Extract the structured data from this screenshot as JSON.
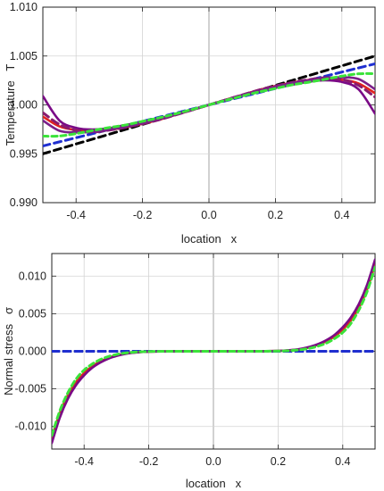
{
  "chart_data": [
    {
      "type": "line",
      "xlabel": "location   x",
      "ylabel": "Temperature   T",
      "xlim": [
        -0.5,
        0.5
      ],
      "ylim": [
        0.99,
        1.01
      ],
      "xticks": [
        -0.4,
        -0.2,
        0.0,
        0.2,
        0.4
      ],
      "xtick_labels": [
        "-0.4",
        "-0.2",
        "0.0",
        "0.2",
        "0.4"
      ],
      "yticks": [
        0.99,
        0.995,
        1.0,
        1.005,
        1.01
      ],
      "ytick_labels": [
        "0.990",
        "0.995",
        "1.000",
        "1.005",
        "1.010"
      ],
      "grid": true,
      "x": [
        -0.5,
        -0.45,
        -0.4,
        -0.35,
        -0.3,
        -0.25,
        -0.2,
        -0.15,
        -0.1,
        -0.05,
        0.0,
        0.05,
        0.1,
        0.15,
        0.2,
        0.25,
        0.3,
        0.35,
        0.4,
        0.45,
        0.5
      ],
      "series": [
        {
          "color": "#000000",
          "style": "dashed",
          "values": [
            0.995,
            0.9955,
            0.996,
            0.9965,
            0.997,
            0.9975,
            0.998,
            0.9985,
            0.999,
            0.9995,
            1.0,
            1.0005,
            1.001,
            1.0015,
            1.002,
            1.0025,
            1.003,
            1.0035,
            1.004,
            1.0045,
            1.005
          ]
        },
        {
          "color": "#1f2fd0",
          "style": "dashed",
          "values": [
            0.9958,
            0.99622,
            0.99664,
            0.99706,
            0.99748,
            0.9979,
            0.99832,
            0.99874,
            0.99916,
            0.99958,
            1.0,
            1.00042,
            1.00084,
            1.00126,
            1.00168,
            1.0021,
            1.00252,
            1.00294,
            1.00336,
            1.00378,
            1.0042
          ]
        },
        {
          "color": "#e0221e",
          "style": "solid",
          "values": [
            0.9988,
            0.9978,
            0.99742,
            0.99728,
            0.99745,
            0.99772,
            0.99807,
            0.99848,
            0.99898,
            0.99948,
            1.0,
            1.00052,
            1.00102,
            1.00152,
            1.00193,
            1.00228,
            1.00255,
            1.00272,
            1.00258,
            1.0022,
            1.0012
          ]
        },
        {
          "color": "#7a0a86",
          "style": "solid",
          "values": [
            1.0009,
            0.9984,
            0.99765,
            0.99748,
            0.99763,
            0.99795,
            0.99825,
            0.99862,
            0.99905,
            0.99952,
            1.0,
            1.00048,
            1.00095,
            1.00138,
            1.00175,
            1.00205,
            1.00237,
            1.00252,
            1.00235,
            1.0016,
            0.9991
          ]
        },
        {
          "color": "#8a1b6e",
          "style": "dashed",
          "values": [
            0.9992,
            0.998,
            0.99738,
            0.99722,
            0.99742,
            0.9977,
            0.99806,
            0.99848,
            0.99898,
            0.99949,
            1.0,
            1.00051,
            1.00102,
            1.00152,
            1.00194,
            1.0023,
            1.00258,
            1.00278,
            1.00262,
            1.002,
            1.0008
          ]
        },
        {
          "color": "#7b1f8a",
          "style": "solid",
          "values": [
            0.9984,
            0.99735,
            0.99718,
            0.99725,
            0.99748,
            0.99778,
            0.99815,
            0.99855,
            0.999,
            0.9995,
            1.0,
            1.0005,
            1.001,
            1.00145,
            1.00185,
            1.00222,
            1.00252,
            1.00275,
            1.00282,
            1.00265,
            1.0016
          ]
        },
        {
          "color": "#3be33a",
          "style": "dashed",
          "values": [
            0.9968,
            0.99682,
            0.99706,
            0.99738,
            0.99768,
            0.99795,
            0.99832,
            0.99868,
            0.9991,
            0.99954,
            1.0,
            1.00046,
            1.0009,
            1.00132,
            1.00168,
            1.00205,
            1.00232,
            1.00262,
            1.00294,
            1.00318,
            1.0032
          ]
        }
      ]
    },
    {
      "type": "line",
      "xlabel": "location   x",
      "ylabel": "Normal stress   σ",
      "xlim": [
        -0.5,
        0.5
      ],
      "ylim": [
        -0.013,
        0.013
      ],
      "xticks": [
        -0.4,
        -0.2,
        0.0,
        0.2,
        0.4
      ],
      "xtick_labels": [
        "-0.4",
        "-0.2",
        "0.0",
        "0.2",
        "0.4"
      ],
      "yticks": [
        -0.01,
        -0.005,
        0.0,
        0.005,
        0.01
      ],
      "ytick_labels": [
        "-0.010",
        "-0.005",
        "0.000",
        "0.005",
        "0.010"
      ],
      "grid": true,
      "x": [
        -0.5,
        -0.475,
        -0.45,
        -0.425,
        -0.4,
        -0.375,
        -0.35,
        -0.325,
        -0.3,
        -0.275,
        -0.25,
        -0.225,
        -0.2,
        -0.15,
        -0.1,
        -0.05,
        0.0,
        0.05,
        0.1,
        0.15,
        0.2,
        0.225,
        0.25,
        0.275,
        0.3,
        0.325,
        0.35,
        0.375,
        0.4,
        0.425,
        0.45,
        0.475,
        0.5
      ],
      "series": [
        {
          "color": "#000000",
          "style": "dashed",
          "values": [
            0,
            0,
            0,
            0,
            0,
            0,
            0,
            0,
            0,
            0,
            0,
            0,
            0,
            0,
            0,
            0,
            0,
            0,
            0,
            0,
            0,
            0,
            0,
            0,
            0,
            0,
            0,
            0,
            0,
            0,
            0,
            0,
            0
          ]
        },
        {
          "color": "#1f2fd0",
          "style": "dashed",
          "values": [
            0,
            0,
            0,
            0,
            0,
            0,
            0,
            0,
            0,
            0,
            0,
            0,
            0,
            0,
            0,
            0,
            0,
            0,
            0,
            0,
            0,
            0,
            0,
            0,
            0,
            0,
            0,
            0,
            0,
            0,
            0,
            0,
            0
          ]
        },
        {
          "color": "#e0221e",
          "style": "solid",
          "values": [
            -0.0115,
            -0.0082,
            -0.0058,
            -0.0041,
            -0.0029,
            -0.002,
            -0.00135,
            -0.00088,
            -0.00055,
            -0.00033,
            -0.00019,
            -0.0001,
            -5e-05,
            -1e-05,
            0.0,
            0.0,
            0.0,
            0.0,
            0.0,
            1e-05,
            5e-05,
            0.0001,
            0.00019,
            0.00033,
            0.00055,
            0.00088,
            0.00135,
            0.002,
            0.0029,
            0.0041,
            0.0058,
            0.0082,
            0.0115
          ]
        },
        {
          "color": "#7a0a86",
          "style": "solid",
          "values": [
            -0.0122,
            -0.0088,
            -0.0063,
            -0.0045,
            -0.0032,
            -0.0022,
            -0.0015,
            -0.00098,
            -0.00062,
            -0.00037,
            -0.00021,
            -0.00011,
            -5e-05,
            -1e-05,
            0.0,
            0.0,
            0.0,
            0.0,
            0.0,
            1e-05,
            5e-05,
            0.00011,
            0.00021,
            0.00037,
            0.00062,
            0.00098,
            0.0015,
            0.0022,
            0.0032,
            0.0045,
            0.0063,
            0.0088,
            0.0122
          ]
        },
        {
          "color": "#3be33a",
          "style": "dashed",
          "values": [
            -0.0112,
            -0.0079,
            -0.0055,
            -0.0037,
            -0.0025,
            -0.0017,
            -0.0011,
            -0.0007,
            -0.00042,
            -0.00024,
            -0.00013,
            -6e-05,
            -3e-05,
            0.0,
            0.0,
            0.0,
            0.0,
            0.0,
            0.0,
            0.0,
            3e-05,
            6e-05,
            0.00013,
            0.00024,
            0.00042,
            0.0007,
            0.0011,
            0.0017,
            0.0025,
            0.0037,
            0.0055,
            0.0079,
            0.0112
          ]
        }
      ]
    }
  ]
}
